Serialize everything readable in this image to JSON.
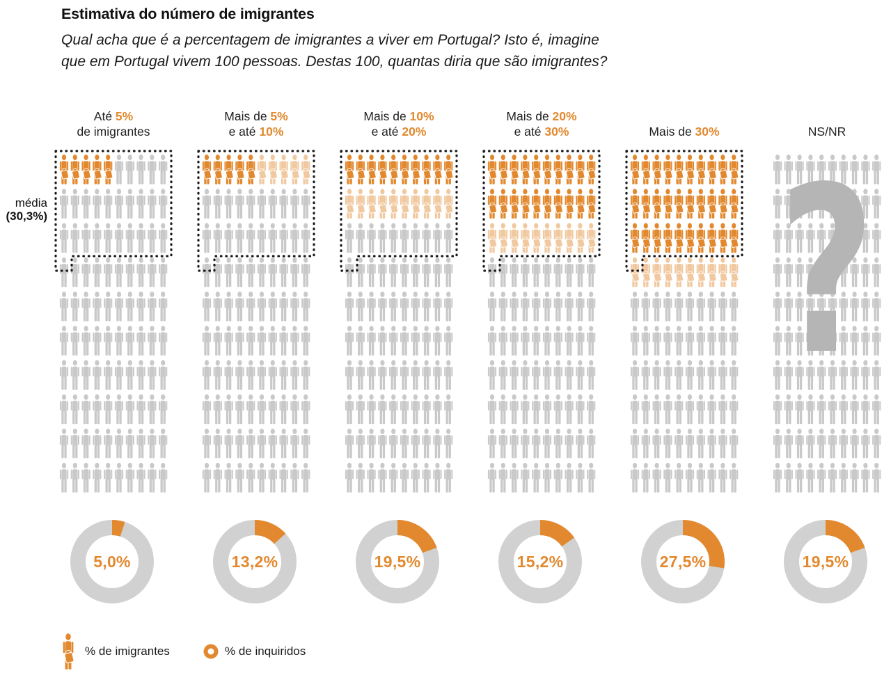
{
  "title": "Estimativa do número de imigrantes",
  "subtitle": {
    "line1": "Qual acha que é a percentagem de imigrantes a viver em Portugal? Isto é, imagine",
    "line2": "que em Portugal vivem 100 pessoas. Destas 100, quantas diria que são imigrantes?"
  },
  "mean": {
    "label": "média",
    "value": "(30,3%)",
    "pct": 30.3
  },
  "legend": {
    "immigrants_icon": "immigrant-person-with-suitcase-icon",
    "immigrants": "% de imigrantes",
    "respondents_icon": "donut-ring-icon",
    "respondents": "% de inquiridos"
  },
  "colors": {
    "orange": "#E2892F",
    "faded_orange_opacity": 0.45,
    "icon_gray": "#C9C9C9",
    "donut_gray": "#D1D1D1",
    "question_gray": "#B5B5B5",
    "outline_black": "#1B1B1B"
  },
  "chart_data": {
    "type": "pictogram",
    "title": "Estimativa do número de imigrantes",
    "unit_total_people": 100,
    "mean_pct": 30.3,
    "mean_outline_note": "dotted outline around first 30.3 of 100 icons in columns 1-5",
    "orange": "#E2892F",
    "gray": "#C9C9C9",
    "donut_series_name": "% de inquiridos",
    "categories": [
      {
        "id": "ate-5",
        "header": [
          [
            {
              "t": "Até ",
              "o": false
            },
            {
              "t": "5%",
              "o": true
            }
          ],
          [
            {
              "t": "de imigrantes",
              "o": false
            }
          ]
        ],
        "icons_solid": 5,
        "icons_faded": 0,
        "respondents_pct": 5.0,
        "respondents_label": "5,0%",
        "mean_outline": true,
        "question": false
      },
      {
        "id": "5-10",
        "header": [
          [
            {
              "t": "Mais de ",
              "o": false
            },
            {
              "t": "5%",
              "o": true
            }
          ],
          [
            {
              "t": "e até ",
              "o": false
            },
            {
              "t": "10%",
              "o": true
            }
          ]
        ],
        "icons_solid": 5,
        "icons_faded": 5,
        "respondents_pct": 13.2,
        "respondents_label": "13,2%",
        "mean_outline": true,
        "question": false
      },
      {
        "id": "10-20",
        "header": [
          [
            {
              "t": "Mais de ",
              "o": false
            },
            {
              "t": "10%",
              "o": true
            }
          ],
          [
            {
              "t": "e até ",
              "o": false
            },
            {
              "t": "20%",
              "o": true
            }
          ]
        ],
        "icons_solid": 10,
        "icons_faded": 10,
        "respondents_pct": 19.5,
        "respondents_label": "19,5%",
        "mean_outline": true,
        "question": false
      },
      {
        "id": "20-30",
        "header": [
          [
            {
              "t": "Mais de ",
              "o": false
            },
            {
              "t": "20%",
              "o": true
            }
          ],
          [
            {
              "t": "e até ",
              "o": false
            },
            {
              "t": "30%",
              "o": true
            }
          ]
        ],
        "icons_solid": 20,
        "icons_faded": 10,
        "respondents_pct": 15.2,
        "respondents_label": "15,2%",
        "mean_outline": true,
        "question": false
      },
      {
        "id": "mais-30",
        "header": [
          [
            {
              "t": "Mais de ",
              "o": false
            },
            {
              "t": "30%",
              "o": true
            }
          ]
        ],
        "icons_solid": 30,
        "icons_faded": 10,
        "respondents_pct": 27.5,
        "respondents_label": "27,5%",
        "mean_outline": true,
        "question": false
      },
      {
        "id": "ns-nr",
        "header": [
          [
            {
              "t": "NS/NR",
              "o": false
            }
          ]
        ],
        "icons_solid": 0,
        "icons_faded": 0,
        "respondents_pct": 19.5,
        "respondents_label": "19,5%",
        "mean_outline": false,
        "question": true
      }
    ]
  }
}
